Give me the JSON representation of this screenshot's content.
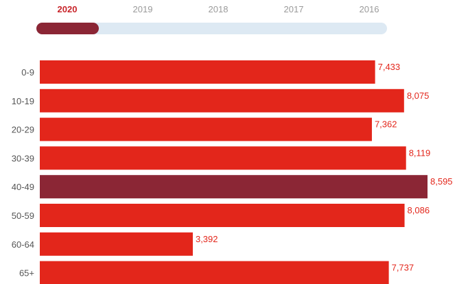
{
  "year_selector": {
    "years": [
      "2020",
      "2019",
      "2018",
      "2017",
      "2016"
    ],
    "selected": "2020"
  },
  "colors": {
    "bar": "#e3261b",
    "highlight_bar": "#8b2635",
    "value_label": "#e3261b",
    "active_year": "#c8242a",
    "slider_track": "#dde9f3",
    "slider_handle": "#8b2635"
  },
  "chart_data": {
    "type": "bar",
    "orientation": "horizontal",
    "categories": [
      "0-9",
      "10-19",
      "20-29",
      "30-39",
      "40-49",
      "50-59",
      "60-64",
      "65+"
    ],
    "values": [
      7433,
      8075,
      7362,
      8119,
      8595,
      8086,
      3392,
      7737
    ],
    "value_labels": [
      "7,433",
      "8,075",
      "7,362",
      "8,119",
      "8,595",
      "8,086",
      "3,392",
      "7,737"
    ],
    "highlight_index": 4,
    "xlim": [
      0,
      8595
    ],
    "grid": false
  }
}
